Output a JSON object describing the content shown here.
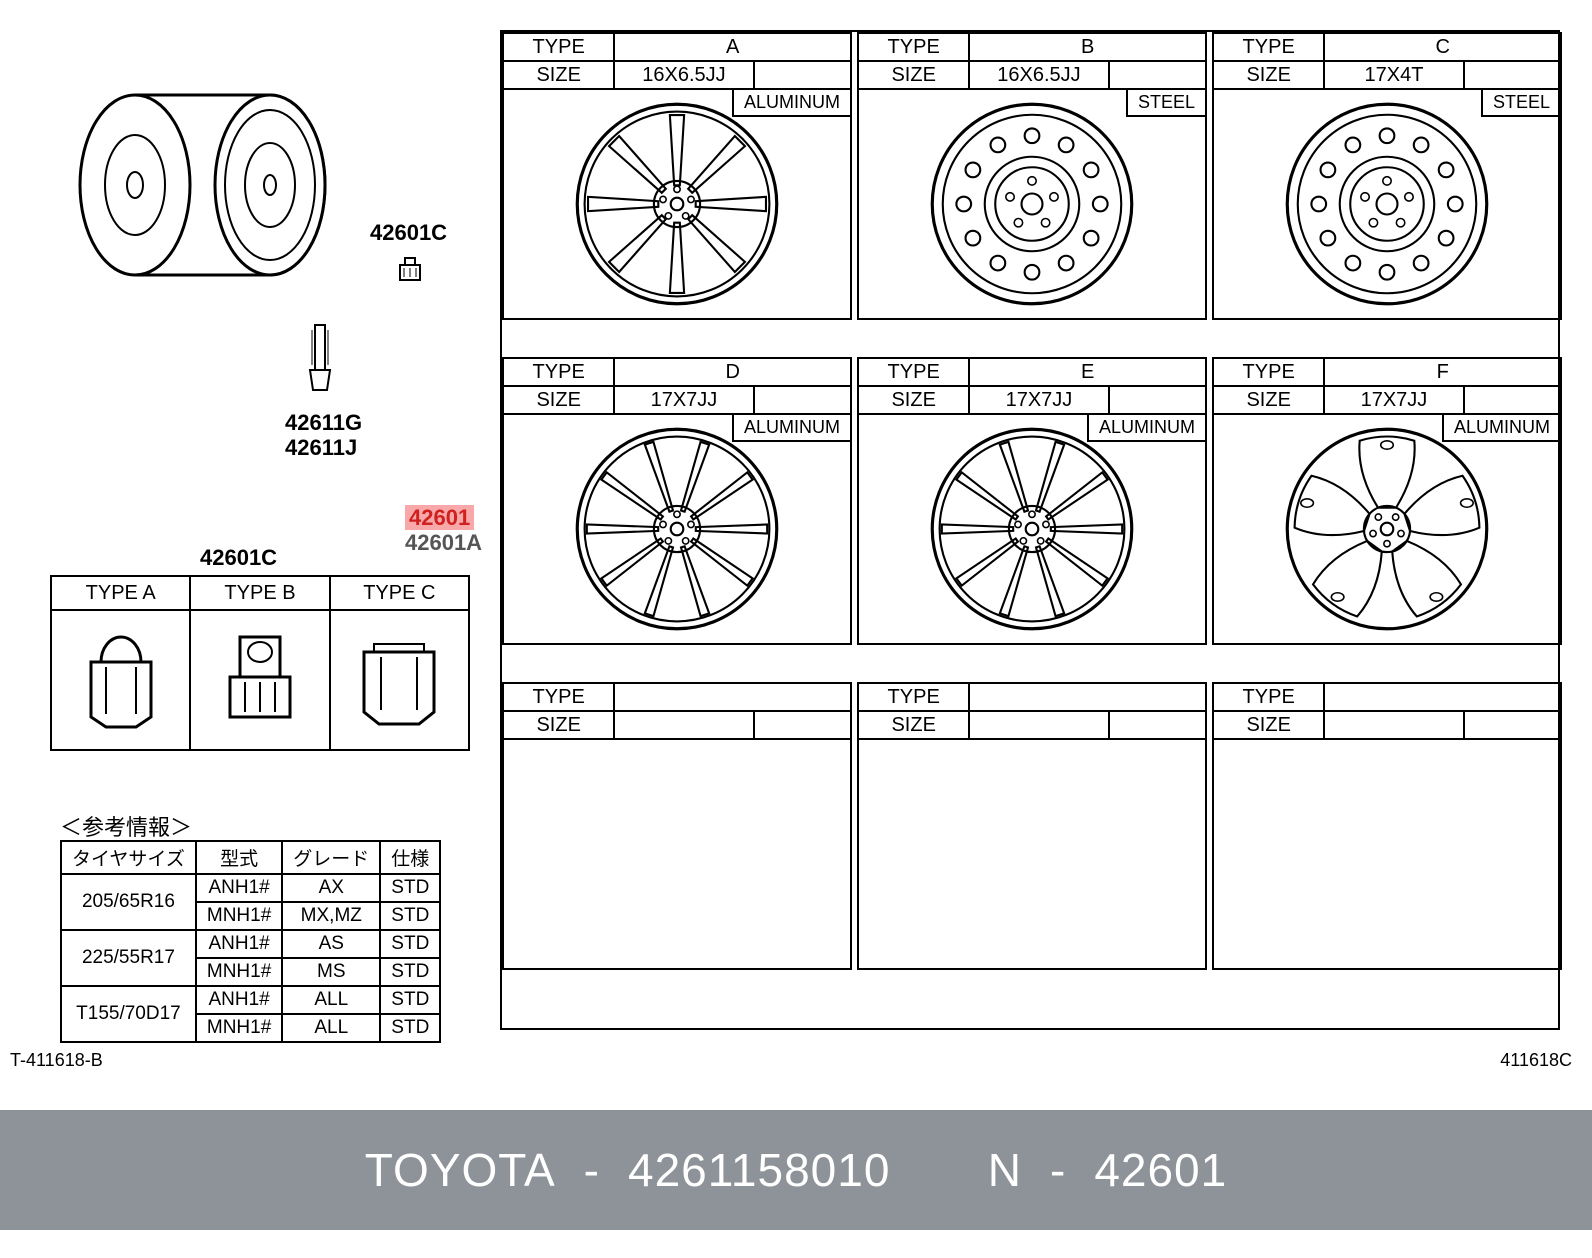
{
  "footer": {
    "brand": "TOYOTA",
    "partnum": "4261158010",
    "ref_prefix": "N",
    "ref_code": "42601"
  },
  "doc_codes": {
    "left": "T-411618-B",
    "right": "411618C"
  },
  "left_labels": {
    "lug_code": "42601C",
    "valve1": "42611G",
    "valve2": "42611J",
    "main_ref": "42601",
    "main_ref2": "42601A",
    "nut_header": "42601C"
  },
  "nut_types": {
    "headers": [
      "TYPE  A",
      "TYPE  B",
      "TYPE  C"
    ]
  },
  "ref_info": {
    "title": "＜参考情報＞",
    "headers": [
      "タイヤサイズ",
      "型式",
      "グレード",
      "仕様"
    ],
    "rows": [
      {
        "tire": "205/65R16",
        "sub": [
          {
            "model": "ANH1#",
            "grade": "AX",
            "spec": "STD"
          },
          {
            "model": "MNH1#",
            "grade": "MX,MZ",
            "spec": "STD"
          }
        ]
      },
      {
        "tire": "225/55R17",
        "sub": [
          {
            "model": "ANH1#",
            "grade": "AS",
            "spec": "STD"
          },
          {
            "model": "MNH1#",
            "grade": "MS",
            "spec": "STD"
          }
        ]
      },
      {
        "tire": "T155/70D17",
        "sub": [
          {
            "model": "ANH1#",
            "grade": "ALL",
            "spec": "STD"
          },
          {
            "model": "MNH1#",
            "grade": "ALL",
            "spec": "STD"
          }
        ]
      }
    ]
  },
  "wheel_grid": {
    "type_label": "TYPE",
    "size_label": "SIZE",
    "cells": [
      {
        "letter": "A",
        "size": "16X6.5JJ",
        "material": "ALUMINUM",
        "style": "spoke8"
      },
      {
        "letter": "B",
        "size": "16X6.5JJ",
        "material": "STEEL",
        "style": "steel"
      },
      {
        "letter": "C",
        "size": "17X4T",
        "material": "STEEL",
        "style": "steel"
      },
      {
        "letter": "D",
        "size": "17X7JJ",
        "material": "ALUMINUM",
        "style": "spoke10"
      },
      {
        "letter": "E",
        "size": "17X7JJ",
        "material": "ALUMINUM",
        "style": "spoke10"
      },
      {
        "letter": "F",
        "size": "17X7JJ",
        "material": "ALUMINUM",
        "style": "spoke5wide"
      },
      {
        "letter": "",
        "size": "",
        "material": "",
        "style": ""
      },
      {
        "letter": "",
        "size": "",
        "material": "",
        "style": ""
      },
      {
        "letter": "",
        "size": "",
        "material": "",
        "style": ""
      }
    ]
  },
  "colors": {
    "line": "#000000",
    "highlight_bg": "#f8a8a8",
    "highlight_fg": "#d02020",
    "footer_bg": "#8d9399",
    "footer_fg": "#ffffff"
  }
}
